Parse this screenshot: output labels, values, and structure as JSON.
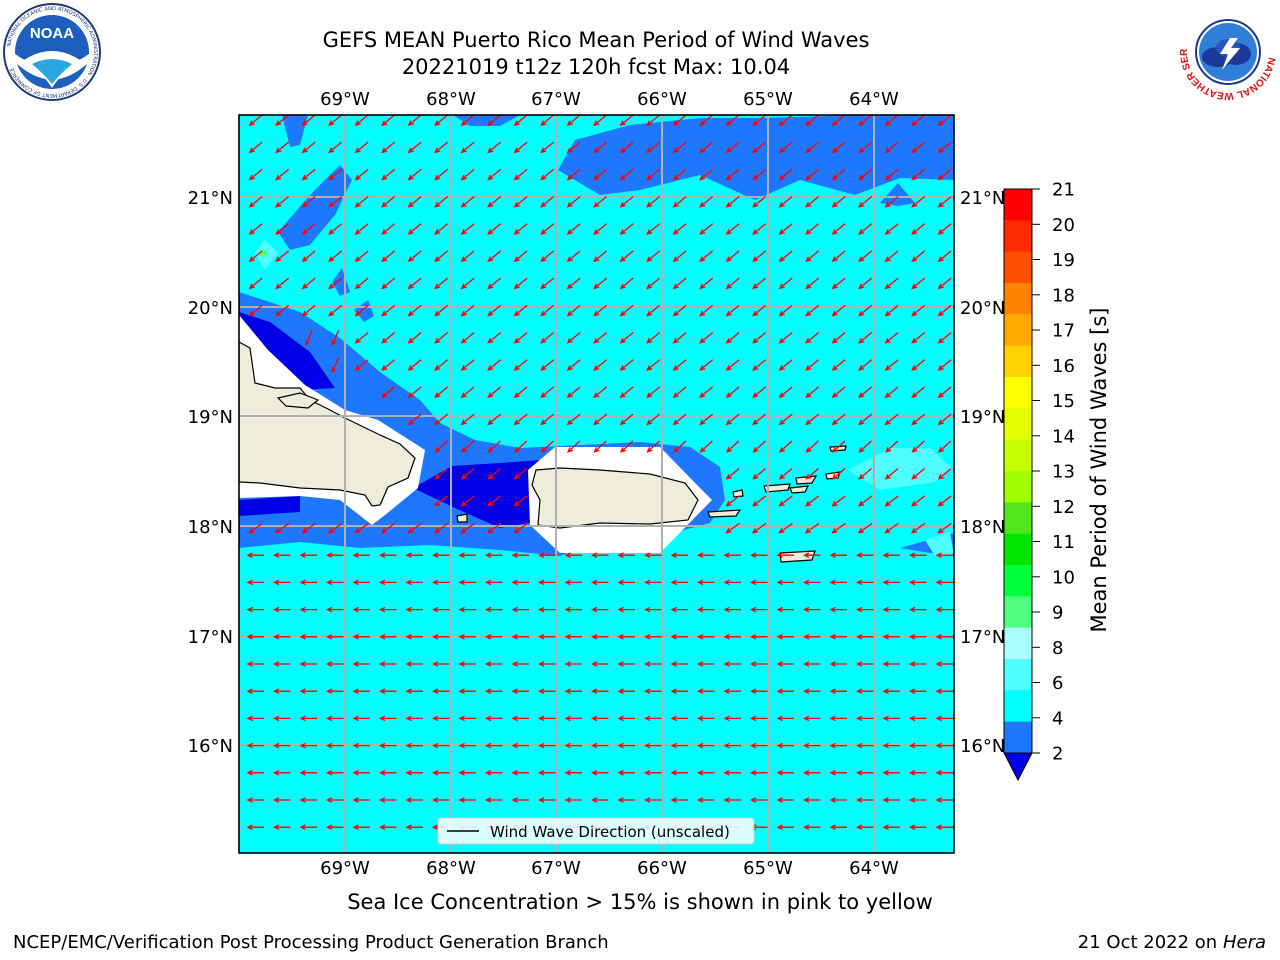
{
  "header": {
    "title_line1": "GEFS MEAN Puerto Rico Mean Period of Wind Waves",
    "title_line2": "20221019 t12z 120h fcst   Max: 10.04"
  },
  "logos": {
    "left": {
      "icon": "noaa-logo",
      "text": "NOAA",
      "ring_text": "NATIONAL OCEANIC AND ATMOSPHERIC ADMINISTRATION · U.S. DEPARTMENT OF COMMERCE"
    },
    "right": {
      "icon": "nws-logo",
      "ring_text": "NATIONAL WEATHER SERVICE"
    }
  },
  "map": {
    "lon_labels": [
      "69°W",
      "68°W",
      "67°W",
      "66°W",
      "65°W",
      "64°W"
    ],
    "lat_labels": [
      "21°N",
      "20°N",
      "19°N",
      "18°N",
      "17°N",
      "16°N"
    ],
    "legend_label": "Wind Wave Direction (unscaled)",
    "colors": {
      "ocean_4_6": "#00ffff",
      "band_2_4": "#1e78ff",
      "band_below_2": "#0000e6",
      "band_6_8": "#4dffff",
      "land": "#eeedda",
      "arrow": "#ff0000",
      "grid": "#b0b0b0"
    }
  },
  "colorbar": {
    "label": "Mean Period of Wind Waves [s]",
    "ticks": [
      "21",
      "20",
      "19",
      "18",
      "17",
      "16",
      "15",
      "14",
      "13",
      "12",
      "11",
      "10",
      "9",
      "8",
      "6",
      "4",
      "2"
    ],
    "colors_top_to_bottom": [
      "#ff0000",
      "#ff2800",
      "#ff5000",
      "#ff8200",
      "#ffaa00",
      "#ffd200",
      "#ffff00",
      "#e6ff00",
      "#c8ff00",
      "#a0ff00",
      "#50e61e",
      "#00e600",
      "#00ff3c",
      "#50ff7f",
      "#aaffff",
      "#4dffff",
      "#00ffff",
      "#1e78ff"
    ],
    "under_color": "#0000e6"
  },
  "subtitle": "Sea Ice Concentration > 15% is shown in pink to yellow",
  "footer": {
    "left": "NCEP/EMC/Verification Post Processing Product Generation Branch",
    "right_date": "21 Oct 2022 on",
    "right_host": "Hera"
  }
}
